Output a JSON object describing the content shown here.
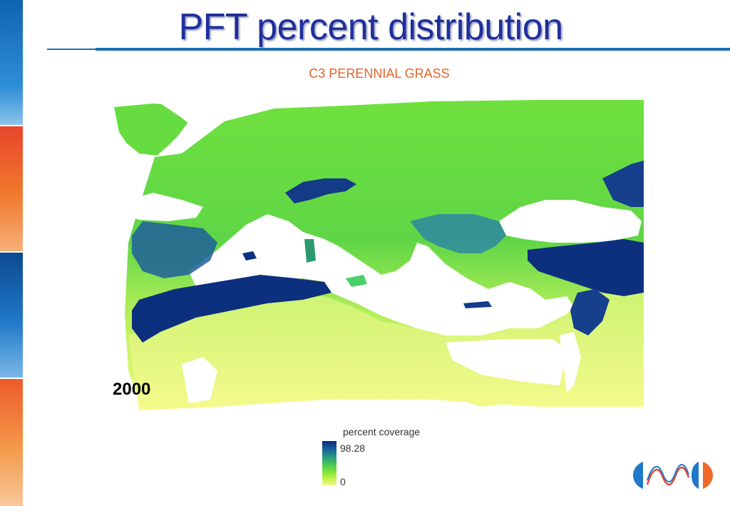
{
  "slide": {
    "title": "PFT percent distribution",
    "subtitle": "C3 PERENNIAL GRASS"
  },
  "map": {
    "year_label": "2000",
    "colors": {
      "high": "#0b2a7a",
      "mid": "#2ba17c",
      "low_green": "#56d24a",
      "zero": "#f6fa8a",
      "water": "#ffffff"
    }
  },
  "legend": {
    "title": "percent coverage",
    "max_label": "98.28",
    "min_label": "0"
  },
  "colors": {
    "title": "#1f2f9c",
    "subtitle": "#e2642a",
    "rule": "#1a6fb3"
  }
}
